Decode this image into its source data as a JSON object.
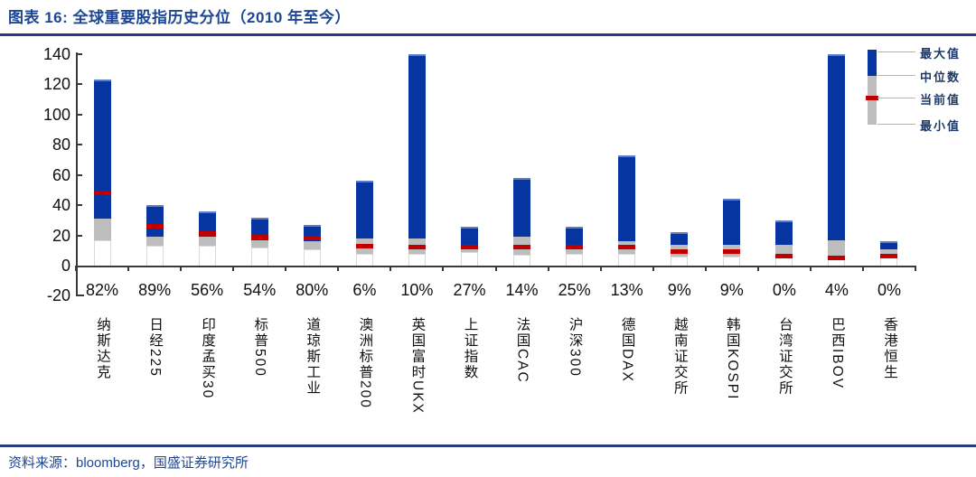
{
  "header": {
    "title": "图表 16:  全球重要股指历史分位（2010 年至今）"
  },
  "footer": {
    "text": "资料来源：bloomberg，国盛证券研究所"
  },
  "chart_data": {
    "type": "bar",
    "subtype": "floating-range-bar-with-current-tick",
    "figure_label": "图表 16",
    "title": "全球重要股指历史分位（2010 年至今）",
    "categories": [
      "纳斯达克",
      "日经225",
      "印度孟买30",
      "标普500",
      "道琼斯工业",
      "澳洲标普200",
      "英国富时UKX",
      "上证指数",
      "法国CAC",
      "沪深300",
      "德国DAX",
      "越南证交所",
      "韩国KOSPI",
      "台湾证交所",
      "巴西IBOV",
      "香港恒生"
    ],
    "percentile_labels": [
      "82%",
      "89%",
      "56%",
      "54%",
      "80%",
      "6%",
      "10%",
      "27%",
      "14%",
      "25%",
      "13%",
      "9%",
      "9%",
      "0%",
      "4%",
      "0%"
    ],
    "series": [
      {
        "name": "最大值",
        "values": [
          123,
          40,
          36,
          32,
          27,
          56,
          140,
          26,
          58,
          26,
          73,
          22,
          44,
          30,
          140,
          16
        ]
      },
      {
        "name": "中位数",
        "values": [
          31,
          19,
          19,
          17,
          16,
          18,
          18,
          14,
          19,
          14,
          16,
          14,
          14,
          14,
          17,
          11
        ]
      },
      {
        "name": "当前值",
        "values": [
          48,
          26,
          21,
          19,
          18,
          13,
          12,
          12,
          12,
          12,
          12,
          9,
          9,
          6,
          5,
          6
        ]
      },
      {
        "name": "最小值",
        "values": [
          17,
          13,
          13,
          12,
          11,
          8,
          8,
          9,
          7,
          8,
          8,
          6,
          6,
          6,
          4,
          6
        ]
      }
    ],
    "ylim": [
      -20,
      140
    ],
    "yticks": [
      140,
      120,
      100,
      80,
      60,
      40,
      20,
      0,
      -20
    ],
    "grid": false,
    "legend_position": "top-right",
    "colors": {
      "bar_blue": "#0634a1",
      "bar_gray": "#bdbdbd",
      "current_red": "#c00000",
      "min_filler": "#ffffff",
      "accent_navy": "#283a80",
      "text_blue": "#1d4694"
    }
  }
}
